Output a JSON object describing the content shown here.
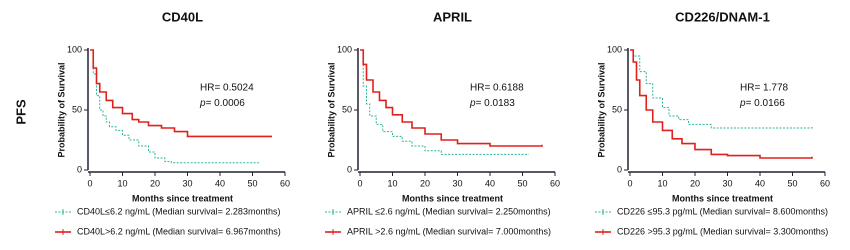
{
  "row_label": "PFS",
  "chart_data": [
    {
      "type": "step",
      "title": "CD40L",
      "x_label": "Months since treatment",
      "y_label": "Probability of Survival",
      "hr": "HR= 0.5024",
      "p": {
        "symbol": "p",
        "text": "= 0.0006"
      },
      "xlim": [
        0,
        60
      ],
      "xticks": [
        0,
        10,
        20,
        30,
        40,
        50,
        60
      ],
      "ylim": [
        0,
        100
      ],
      "yticks": [
        0,
        50,
        100
      ],
      "series": [
        {
          "name": "CD40L≤6.2 ng/mL (Median survival= 2.283months)",
          "color": "#2bb59a",
          "dashed": true,
          "x": [
            0,
            1,
            2,
            3,
            4,
            5,
            6,
            8,
            10,
            12,
            15,
            18,
            20,
            23,
            25,
            30,
            52
          ],
          "values": [
            100,
            80,
            62,
            50,
            45,
            40,
            36,
            33,
            29,
            25,
            20,
            15,
            10,
            7,
            6,
            6,
            6
          ]
        },
        {
          "name": "CD40L>6.2 ng/mL (Median survival= 6.967months)",
          "color": "#e0201c",
          "dashed": false,
          "x": [
            0,
            1,
            2,
            3,
            5,
            7,
            10,
            13,
            15,
            18,
            22,
            26,
            30,
            45,
            56
          ],
          "values": [
            100,
            85,
            72,
            65,
            58,
            52,
            47,
            42,
            40,
            37,
            35,
            32,
            28,
            28,
            28
          ]
        }
      ]
    },
    {
      "type": "step",
      "title": "APRIL",
      "x_label": "Months since treatment",
      "y_label": "Probability of Survival",
      "hr": "HR= 0.6188",
      "p": {
        "symbol": "p",
        "text": "= 0.0183"
      },
      "xlim": [
        0,
        60
      ],
      "xticks": [
        0,
        10,
        20,
        30,
        40,
        50,
        60
      ],
      "ylim": [
        0,
        100
      ],
      "yticks": [
        0,
        50,
        100
      ],
      "series": [
        {
          "name": "APRIL ≤2.6 ng/mL (Median survival= 2.250months)",
          "color": "#2bb59a",
          "dashed": true,
          "x": [
            0,
            1,
            2,
            3,
            5,
            7,
            10,
            13,
            16,
            20,
            25,
            30,
            52
          ],
          "values": [
            100,
            70,
            55,
            45,
            38,
            32,
            28,
            24,
            20,
            16,
            13,
            13,
            13
          ]
        },
        {
          "name": "APRIL >2.6 ng/mL (Median survival= 7.000months)",
          "color": "#e0201c",
          "dashed": false,
          "x": [
            0,
            1,
            2,
            4,
            6,
            8,
            10,
            13,
            16,
            20,
            25,
            30,
            40,
            56
          ],
          "values": [
            100,
            88,
            75,
            65,
            58,
            52,
            46,
            40,
            35,
            30,
            25,
            22,
            20,
            21
          ]
        }
      ]
    },
    {
      "type": "step",
      "title": "CD226/DNAM-1",
      "x_label": "Months since treatment",
      "y_label": "Probability of Survival",
      "hr": "HR= 1.778",
      "p": {
        "symbol": "p",
        "text": "= 0.0166"
      },
      "xlim": [
        0,
        60
      ],
      "xticks": [
        0,
        10,
        20,
        30,
        40,
        50,
        60
      ],
      "ylim": [
        0,
        100
      ],
      "yticks": [
        0,
        50,
        100
      ],
      "series": [
        {
          "name": "CD226 ≤95.3 pg/mL (Median survival= 8.600months)",
          "color": "#2bb59a",
          "dashed": true,
          "x": [
            0,
            1,
            3,
            5,
            7,
            10,
            12,
            15,
            18,
            25,
            56
          ],
          "values": [
            100,
            95,
            82,
            72,
            60,
            52,
            45,
            42,
            38,
            35,
            37
          ]
        },
        {
          "name": "CD226 >95.3 pg/mL (Median survival= 3.300months)",
          "color": "#e0201c",
          "dashed": false,
          "x": [
            0,
            1,
            2,
            3,
            5,
            7,
            10,
            13,
            16,
            20,
            25,
            30,
            40,
            56
          ],
          "values": [
            100,
            90,
            75,
            62,
            50,
            40,
            33,
            26,
            22,
            17,
            13,
            12,
            10,
            11
          ]
        }
      ]
    }
  ]
}
